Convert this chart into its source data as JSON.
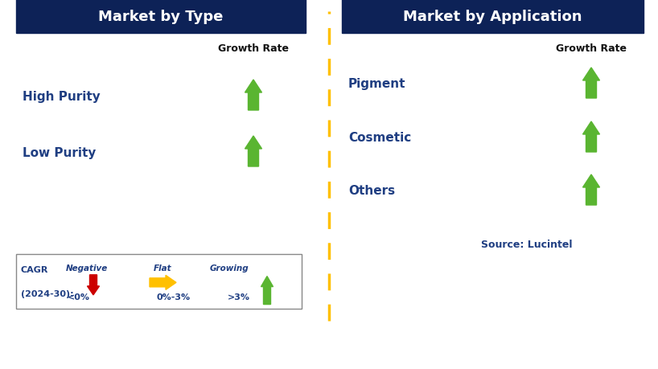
{
  "title_left": "Market by Type",
  "title_right": "Market by Application",
  "header_bg_color": "#0d2257",
  "header_text_color": "#ffffff",
  "label_color": "#1f3e82",
  "growth_rate_label": "Growth Rate",
  "left_items": [
    "High Purity",
    "Low Purity"
  ],
  "right_items": [
    "Pigment",
    "Cosmetic",
    "Others"
  ],
  "arrow_color_up": "#5ab531",
  "arrow_color_down": "#cc0000",
  "arrow_color_flat": "#ffc000",
  "divider_color": "#ffc000",
  "legend_label_line1": "CAGR",
  "legend_label_line2": "(2024-30):",
  "legend_neg_label": "Negative",
  "legend_neg_value": "<0%",
  "legend_flat_label": "Flat",
  "legend_flat_value": "0%-3%",
  "legend_grow_label": "Growing",
  "legend_grow_value": ">3%",
  "source_text": "Source: Lucintel",
  "bg_color": "#ffffff"
}
